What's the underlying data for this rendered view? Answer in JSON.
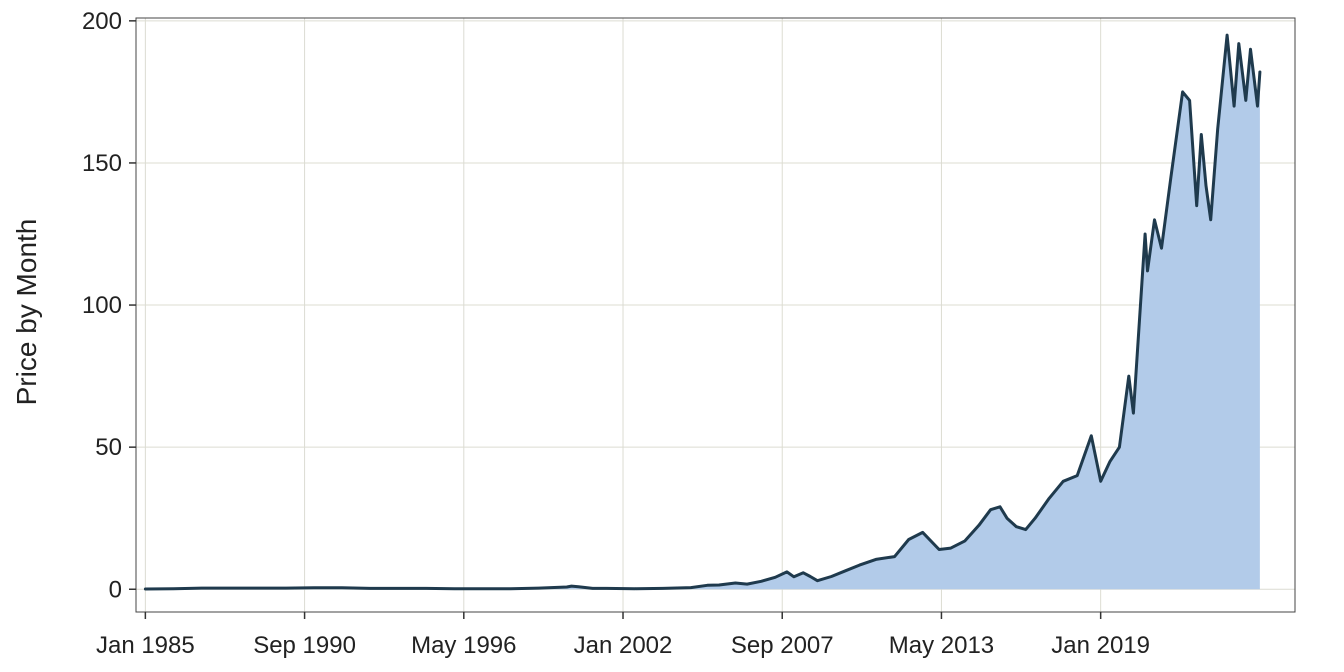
{
  "chart_data": {
    "type": "area",
    "title": "",
    "xlabel": "",
    "ylabel": "Price by Month",
    "x_ticks": [
      "Jan 1985",
      "Sep 1990",
      "May 1996",
      "Jan 2002",
      "Sep 2007",
      "May 2013",
      "Jan 2019"
    ],
    "y_ticks": [
      0,
      50,
      100,
      150,
      200
    ],
    "ylim": [
      -8,
      201
    ],
    "xlim": [
      "1984-09",
      "2025-12"
    ],
    "grid": true,
    "colors": {
      "area": "#b2cbe9",
      "line": "#1f3a4d",
      "grid": "#dcdcd2"
    },
    "series": [
      {
        "values": [
          [
            "1985-01",
            0.1
          ],
          [
            "1986-01",
            0.2
          ],
          [
            "1987-01",
            0.4
          ],
          [
            "1988-01",
            0.4
          ],
          [
            "1989-01",
            0.4
          ],
          [
            "1990-01",
            0.4
          ],
          [
            "1991-01",
            0.5
          ],
          [
            "1992-01",
            0.5
          ],
          [
            "1993-01",
            0.3
          ],
          [
            "1994-01",
            0.3
          ],
          [
            "1995-01",
            0.3
          ],
          [
            "1996-01",
            0.2
          ],
          [
            "1997-01",
            0.2
          ],
          [
            "1998-01",
            0.2
          ],
          [
            "1999-01",
            0.4
          ],
          [
            "2000-01",
            0.8
          ],
          [
            "2000-03",
            1.1
          ],
          [
            "2000-06",
            0.9
          ],
          [
            "2000-12",
            0.3
          ],
          [
            "2001-06",
            0.3
          ],
          [
            "2002-06",
            0.2
          ],
          [
            "2003-06",
            0.3
          ],
          [
            "2004-06",
            0.6
          ],
          [
            "2005-01",
            1.4
          ],
          [
            "2005-06",
            1.5
          ],
          [
            "2006-01",
            2.2
          ],
          [
            "2006-06",
            1.8
          ],
          [
            "2006-12",
            2.8
          ],
          [
            "2007-06",
            4.2
          ],
          [
            "2007-11",
            6.1
          ],
          [
            "2008-02",
            4.4
          ],
          [
            "2008-06",
            5.8
          ],
          [
            "2008-09",
            4.5
          ],
          [
            "2008-12",
            3.0
          ],
          [
            "2009-06",
            4.5
          ],
          [
            "2009-12",
            6.5
          ],
          [
            "2010-06",
            8.5
          ],
          [
            "2011-01",
            10.5
          ],
          [
            "2011-09",
            11.5
          ],
          [
            "2012-03",
            17.5
          ],
          [
            "2012-09",
            20.0
          ],
          [
            "2013-04",
            14.0
          ],
          [
            "2013-09",
            14.5
          ],
          [
            "2014-03",
            17.0
          ],
          [
            "2014-09",
            22.5
          ],
          [
            "2015-02",
            28.0
          ],
          [
            "2015-06",
            29.0
          ],
          [
            "2015-09",
            25.0
          ],
          [
            "2016-01",
            22.0
          ],
          [
            "2016-05",
            21.0
          ],
          [
            "2016-09",
            25.0
          ],
          [
            "2017-03",
            32.0
          ],
          [
            "2017-09",
            38.0
          ],
          [
            "2018-03",
            40.0
          ],
          [
            "2018-09",
            54.0
          ],
          [
            "2019-01",
            38.0
          ],
          [
            "2019-05",
            45.0
          ],
          [
            "2019-09",
            50.0
          ],
          [
            "2020-01",
            75.0
          ],
          [
            "2020-03",
            62.0
          ],
          [
            "2020-08",
            125.0
          ],
          [
            "2020-09",
            112.0
          ],
          [
            "2020-12",
            130.0
          ],
          [
            "2021-03",
            120.0
          ],
          [
            "2021-07",
            145.0
          ],
          [
            "2021-12",
            175.0
          ],
          [
            "2022-03",
            172.0
          ],
          [
            "2022-06",
            135.0
          ],
          [
            "2022-08",
            160.0
          ],
          [
            "2022-10",
            142.0
          ],
          [
            "2022-12",
            130.0
          ],
          [
            "2023-03",
            162.0
          ],
          [
            "2023-07",
            195.0
          ],
          [
            "2023-10",
            170.0
          ],
          [
            "2023-12",
            192.0
          ],
          [
            "2024-03",
            172.0
          ],
          [
            "2024-05",
            190.0
          ],
          [
            "2024-08",
            170.0
          ],
          [
            "2024-09",
            182.0
          ]
        ]
      }
    ]
  }
}
